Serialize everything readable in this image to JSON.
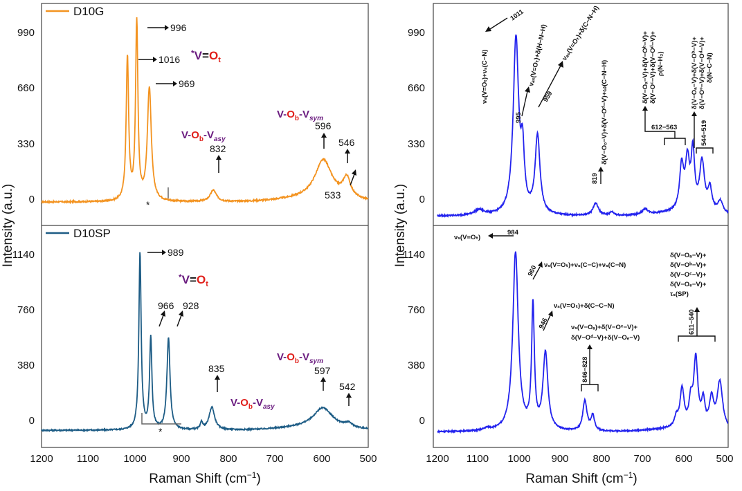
{
  "chart_data": {
    "type": "line",
    "x_axis_label": "Raman Shift (cm",
    "x_axis_unit_sup": "−1",
    "x_axis_close": ")",
    "y_axis_label": "Intensity (a.u.)",
    "x_ticks": [
      "1200",
      "1100",
      "1000",
      "900",
      "800",
      "700",
      "600",
      "500"
    ],
    "colors": {
      "orange": "#f39320",
      "teal": "#1d5c85",
      "blue": "#2323ee",
      "purple": "#6a1b7f",
      "red": "#e0201b",
      "frame": "#444444"
    },
    "panels": [
      {
        "id": "top-left",
        "legend": "D10G",
        "line_color": "#f39320",
        "ylim": [
          -80,
          1150
        ],
        "y_ticks": [
          "0",
          "330",
          "660",
          "990"
        ],
        "baseline": 40,
        "peaks": [
          {
            "x": 1016,
            "y": 810,
            "w": 3.2
          },
          {
            "x": 996,
            "y": 1000,
            "w": 3.0
          },
          {
            "x": 969,
            "y": 640,
            "w": 5.0
          },
          {
            "x": 832,
            "y": 65,
            "w": 8
          },
          {
            "x": 596,
            "y": 220,
            "w": 22
          },
          {
            "x": 546,
            "y": 110,
            "w": 10
          }
        ],
        "labels": {
          "p1016": "1016",
          "p996": "996",
          "p969": "969",
          "p832": "832",
          "p596": "596",
          "p546": "546",
          "p533": "533",
          "star": "*"
        },
        "vot": {
          "star": "*",
          "v": "V=O",
          "sub": "t"
        },
        "vob_asy": {
          "v": "V-O",
          "b": "b",
          "mid": "-V",
          "sub": "asy"
        },
        "vob_sym": {
          "v": "V-O",
          "b": "b",
          "mid": "-V",
          "sub": "sym"
        }
      },
      {
        "id": "bottom-left",
        "legend": "D10SP",
        "line_color": "#1d5c85",
        "ylim": [
          -90,
          1290
        ],
        "y_ticks": [
          "0",
          "380",
          "760",
          "1140"
        ],
        "baseline": 5,
        "peaks": [
          {
            "x": 989,
            "y": 1120,
            "w": 3.0
          },
          {
            "x": 966,
            "y": 580,
            "w": 3.0
          },
          {
            "x": 928,
            "y": 580,
            "w": 4.0
          },
          {
            "x": 835,
            "y": 145,
            "w": 7
          },
          {
            "x": 857,
            "y": 45,
            "w": 3
          },
          {
            "x": 597,
            "y": 125,
            "w": 25
          },
          {
            "x": 542,
            "y": 25,
            "w": 10
          }
        ],
        "labels": {
          "p989": "989",
          "p966": "966",
          "p928": "928",
          "p835": "835",
          "p597": "597",
          "p542": "542",
          "star": "*"
        },
        "vot": {
          "star": "*",
          "v": "V=O",
          "sub": "t"
        },
        "vob_asy": {
          "v": "V-O",
          "b": "b",
          "mid": "-V",
          "sub": "asy"
        },
        "vob_sym": {
          "v": "V-O",
          "b": "b",
          "mid": "-V",
          "sub": "sym"
        }
      },
      {
        "id": "top-right",
        "line_color": "#2323ee",
        "ylim": [
          -80,
          1150
        ],
        "y_ticks": [
          "0",
          "330",
          "660",
          "990"
        ],
        "baseline": -40,
        "peaks": [
          {
            "x": 1100,
            "y": 30,
            "w": 15
          },
          {
            "x": 1011,
            "y": 990,
            "w": 8
          },
          {
            "x": 995,
            "y": 300,
            "w": 5
          },
          {
            "x": 959,
            "y": 440,
            "w": 7
          },
          {
            "x": 819,
            "y": 70,
            "w": 8
          },
          {
            "x": 780,
            "y": 20,
            "w": 6
          },
          {
            "x": 700,
            "y": 30,
            "w": 8
          },
          {
            "x": 612,
            "y": 250,
            "w": 6
          },
          {
            "x": 598,
            "y": 270,
            "w": 6
          },
          {
            "x": 585,
            "y": 320,
            "w": 5
          },
          {
            "x": 563,
            "y": 280,
            "w": 7
          },
          {
            "x": 544,
            "y": 130,
            "w": 6
          },
          {
            "x": 519,
            "y": 70,
            "w": 8
          }
        ],
        "labels": {
          "p1011": "1011",
          "p995": "995",
          "p959": "959",
          "p819": "819",
          "r612": "612−563",
          "r544": "544−519",
          "a1011": "νₛ(V=Oₜ)+νₛ(C−N)",
          "a995": "νₐₛ(V=Oₜ)+δ(H−N−H)",
          "a959": "νₐₛ(V=Oₜ)+δ(C−N−H)",
          "a819": "δ(V−Oₒ−V)+δ(V−Oᵈ−V)+ω(C−N−H)",
          "a612a": "δ(V−Oₐ−V)+δ(V−Oᵇ−V)+",
          "a612b": "δ(V−Oᶜ−V)+δ(V−Oᵈ−V)+",
          "a612c": "ρ(N−H₂)",
          "a544a": "δ(V−Oₐ−V)+δ(V−Oᵇ−V)+",
          "a544b": "δ(V−Oᶜ−V)+δ(V−Oᵈ−V)+",
          "a544c": "δ(N−C−N)"
        }
      },
      {
        "id": "bottom-right",
        "line_color": "#2323ee",
        "ylim": [
          -90,
          1290
        ],
        "y_ticks": [
          "0",
          "380",
          "760",
          "1140"
        ],
        "baseline": -5,
        "peaks": [
          {
            "x": 1080,
            "y": 15,
            "w": 10
          },
          {
            "x": 1012,
            "y": 1130,
            "w": 8
          },
          {
            "x": 970,
            "y": 780,
            "w": 4
          },
          {
            "x": 940,
            "y": 490,
            "w": 7
          },
          {
            "x": 845,
            "y": 190,
            "w": 6
          },
          {
            "x": 826,
            "y": 95,
            "w": 5
          },
          {
            "x": 625,
            "y": 60,
            "w": 5
          },
          {
            "x": 611,
            "y": 240,
            "w": 6
          },
          {
            "x": 590,
            "y": 150,
            "w": 5
          },
          {
            "x": 578,
            "y": 430,
            "w": 6
          },
          {
            "x": 560,
            "y": 160,
            "w": 5
          },
          {
            "x": 540,
            "y": 180,
            "w": 6
          },
          {
            "x": 520,
            "y": 300,
            "w": 8
          }
        ],
        "labels": {
          "p984": "984",
          "p960": "960",
          "p946": "946",
          "r846": "846−828",
          "r611": "611−540",
          "a984": "νₛ(V=Oₜ)",
          "a960": "νₛ(V=Oₜ)+νₛ(C−C)+νₛ(C−N)",
          "a946": "νₛ(V=Oₜ)+δ(C−C−N)",
          "a846a": "νₛ(V−Oₐ)+δ(V−Oᶜ−V)+",
          "a846b": "δ(V−Oᵈ−V)+δ(V−Oₑ−V)",
          "a611a": "δ(V−Oₐ−V)+",
          "a611b": "δ(V−Oᵇ−V)+",
          "a611c": "δ(V−Oᶜ−V)+",
          "a611d": "δ(V−Oₑ−V)+",
          "a611e": "τₛ(SP)"
        }
      }
    ]
  }
}
